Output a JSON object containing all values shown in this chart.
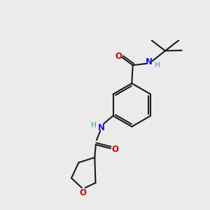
{
  "bg_color": "#ebebeb",
  "bond_color": "#1a1a1a",
  "N_color": "#1414ff",
  "O_color": "#cc0000",
  "H_color": "#4a9090",
  "line_width": 1.5,
  "figsize": [
    3.0,
    3.0
  ],
  "dpi": 100,
  "xlim": [
    0,
    10
  ],
  "ylim": [
    0,
    10
  ]
}
